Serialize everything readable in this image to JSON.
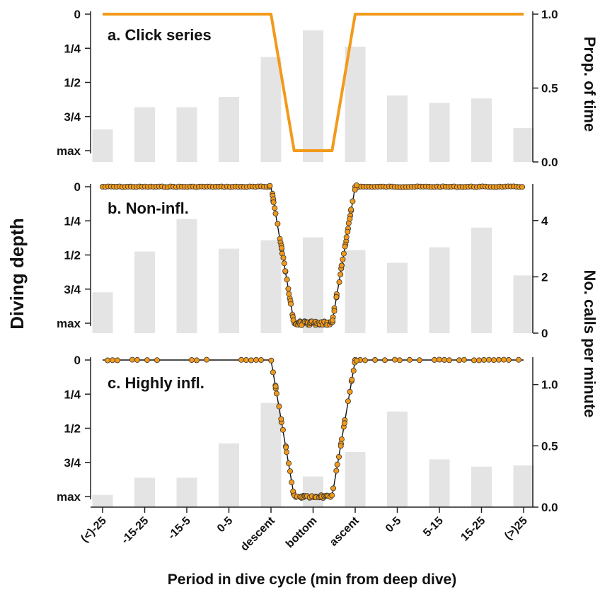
{
  "chart_data": {
    "type": "bar",
    "x_tick_labels": [
      "(<)-25",
      "-15-25",
      "-15-5",
      "0-5",
      "descent",
      "bottom",
      "ascent",
      "0-5",
      "5-15",
      "15-25",
      "(>)25"
    ],
    "xlabel": "Period in dive cycle (min from deep dive)",
    "left_ylabel": "Diving depth",
    "left_tick_labels": [
      "0",
      "1/4",
      "1/2",
      "3/4",
      "max"
    ],
    "right_ylabel_top": "Prop. of time",
    "right_ylabel_bottom": "No. calls per minute",
    "bar_categories": [
      "(<)-25",
      "-15-25",
      "-15-5",
      "0-5",
      "descent",
      "bottom",
      "ascent",
      "0-5",
      "5-15",
      "15-25",
      "(>)25"
    ],
    "line_x": [
      "(<)-25",
      "descent",
      "bottom",
      "ascent",
      "(>)25"
    ],
    "line_depth_fraction": [
      0,
      0,
      1,
      0,
      0
    ],
    "panels": [
      {
        "title": "a. Click series",
        "right_ylim": [
          0,
          1.0
        ],
        "right_ticks": [
          "0.0",
          "0.5",
          "1.0"
        ],
        "right_tick_values": [
          0,
          0.5,
          1.0
        ],
        "bar_values": [
          0.22,
          0.37,
          0.37,
          0.44,
          0.71,
          0.89,
          0.78,
          0.45,
          0.4,
          0.43,
          0.23
        ],
        "depth_line_color": "#f29a1a",
        "depth_style": "line"
      },
      {
        "title": "b. Non-infl.",
        "right_ylim": [
          0,
          5.2
        ],
        "right_ticks": [
          "0",
          "2",
          "4"
        ],
        "right_tick_values": [
          0,
          2,
          4
        ],
        "bar_values": [
          1.45,
          2.9,
          4.05,
          3.0,
          3.3,
          3.4,
          2.95,
          2.5,
          3.05,
          3.75,
          2.05
        ],
        "depth_line_color": "#111111",
        "point_color": "#f29a1a",
        "depth_style": "points"
      },
      {
        "title": "c. Highly infl.",
        "right_ylim": [
          0,
          1.2
        ],
        "right_ticks": [
          "0.0",
          "0.5",
          "1.0"
        ],
        "right_tick_values": [
          0,
          0.5,
          1.0
        ],
        "bar_values": [
          0.1,
          0.24,
          0.24,
          0.52,
          0.85,
          0.25,
          0.45,
          0.78,
          0.39,
          0.33,
          0.34
        ],
        "depth_line_color": "#111111",
        "point_color": "#f29a1a",
        "depth_style": "points"
      }
    ]
  }
}
